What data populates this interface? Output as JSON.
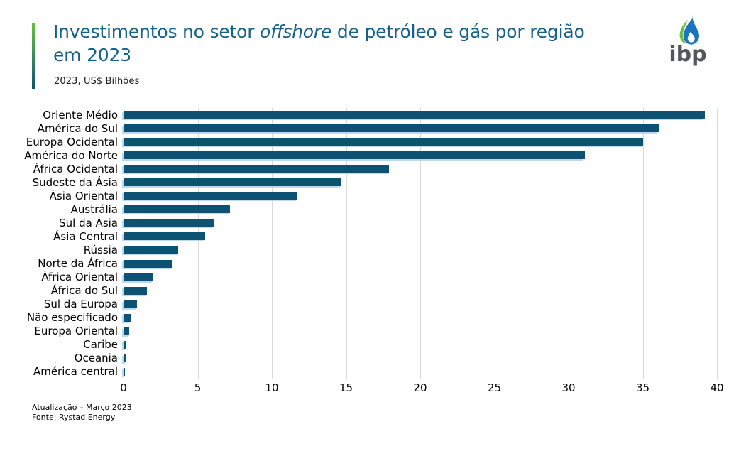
{
  "header": {
    "title_part1": "Investimentos no setor ",
    "title_italic": "offshore",
    "title_part2": " de petróleo e gás por região",
    "title_line2": "em 2023",
    "subtitle": "2023, US$ Bilhões"
  },
  "logo": {
    "text": "ibp"
  },
  "footer": {
    "update_line": "Atualização – Março 2023",
    "source_line": "Fonte: Rystad Energy"
  },
  "colors": {
    "title": "#15618C",
    "bar": "#0D5273",
    "grid": "#D9D9D9",
    "accent_green": "#6CBE45",
    "accent_blue": "#0D5273",
    "logo_green": "#6CBE45",
    "logo_blue": "#1C75BC",
    "logo_text": "#54565A"
  },
  "chart_data": {
    "type": "bar",
    "orientation": "horizontal",
    "title": "Investimentos no setor offshore de petróleo e gás por região em 2023",
    "subtitle": "2023, US$ Bilhões",
    "xlabel": "",
    "ylabel": "",
    "xlim": [
      0,
      40
    ],
    "xticks": [
      0,
      5,
      10,
      15,
      20,
      25,
      30,
      35,
      40
    ],
    "grid": "vertical",
    "legend": "none",
    "categories": [
      "Oriente Médio",
      "América do Sul",
      "Europa Ocidental",
      "América do Norte",
      "África Ocidental",
      "Sudeste da Ásia",
      "Ásia Oriental",
      "Austrália",
      "Sul da Ásia",
      "Ásia Central",
      "Rússia",
      "Norte da África",
      "África Oriental",
      "África do Sul",
      "Sul da Europa",
      "Não especificado",
      "Europa Oriental",
      "Caribe",
      "Oceania",
      "América central"
    ],
    "values": [
      39.2,
      36.1,
      35.0,
      31.1,
      17.9,
      14.7,
      11.7,
      7.2,
      6.1,
      5.5,
      3.7,
      3.3,
      2.0,
      1.6,
      0.9,
      0.5,
      0.4,
      0.2,
      0.2,
      0.08
    ]
  }
}
